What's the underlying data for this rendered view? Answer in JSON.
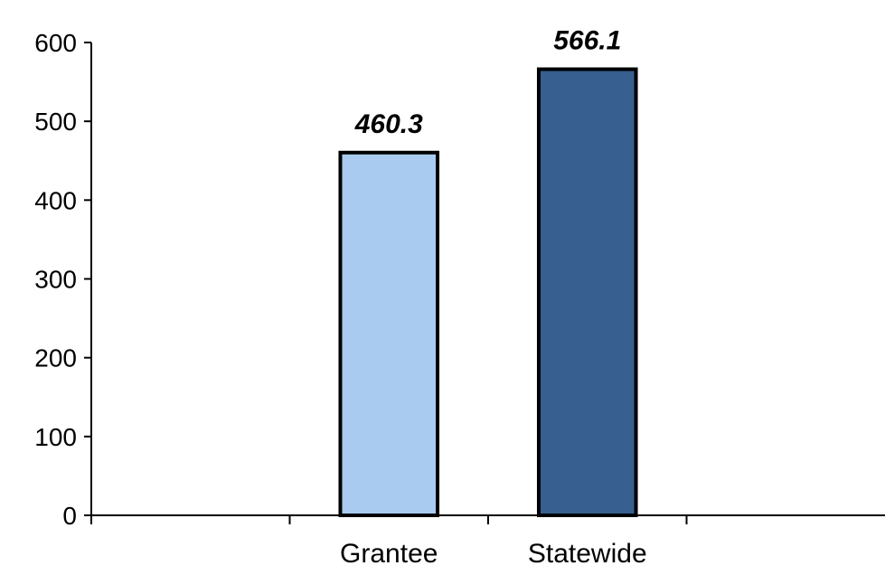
{
  "chart_data": {
    "type": "bar",
    "categories": [
      "Grantee",
      "Statewide"
    ],
    "values": [
      460.3,
      566.1
    ],
    "data_labels": [
      "460.3",
      "566.1"
    ],
    "colors": [
      "#a9cbef",
      "#375f8f"
    ],
    "ylim": [
      0,
      600
    ],
    "yticks": [
      0,
      100,
      200,
      300,
      400,
      500,
      600
    ],
    "ytick_labels": [
      "0",
      "100",
      "200",
      "300",
      "400",
      "500",
      "600"
    ],
    "grid": false,
    "legend": "none"
  }
}
